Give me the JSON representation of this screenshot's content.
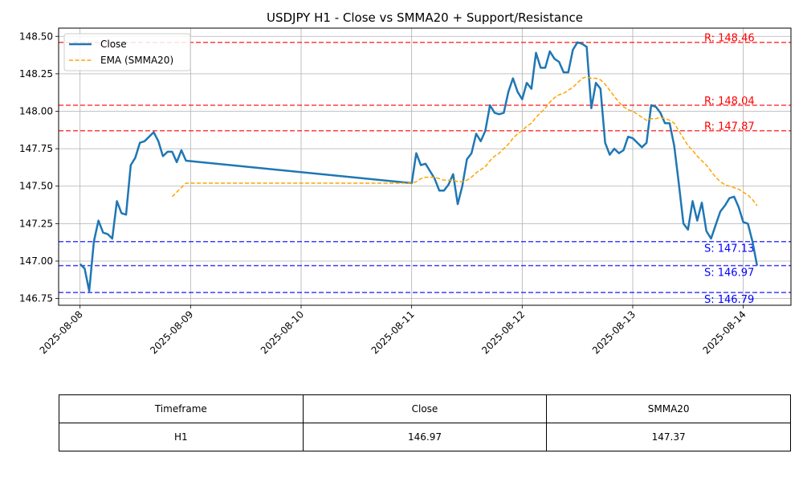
{
  "chart_data": {
    "type": "line",
    "title": "USDJPY H1 - Close vs SMMA20 + Support/Resistance",
    "xlabel": "",
    "ylabel": "",
    "xlim": [
      "2025-08-07T19:21",
      "2025-08-14T10:21"
    ],
    "ylim": [
      146.705,
      148.555
    ],
    "yticks": [
      146.75,
      147.0,
      147.25,
      147.5,
      147.75,
      148.0,
      148.25,
      148.5
    ],
    "ytick_labels": [
      "146.75",
      "147.00",
      "147.25",
      "147.50",
      "147.75",
      "148.00",
      "148.25",
      "148.50"
    ],
    "xticks": [
      "2025-08-08",
      "2025-08-09",
      "2025-08-10",
      "2025-08-11",
      "2025-08-12",
      "2025-08-13",
      "2025-08-14"
    ],
    "grid": true,
    "legend_position": "top-left",
    "series": [
      {
        "name": "Close",
        "color": "#1f77b4",
        "style": "solid",
        "points": [
          [
            "2025-08-08T00:00",
            146.98
          ],
          [
            "2025-08-08T01:00",
            146.95
          ],
          [
            "2025-08-08T02:00",
            146.8
          ],
          [
            "2025-08-08T03:00",
            147.13
          ],
          [
            "2025-08-08T04:00",
            147.27
          ],
          [
            "2025-08-08T05:00",
            147.19
          ],
          [
            "2025-08-08T06:00",
            147.18
          ],
          [
            "2025-08-08T07:00",
            147.15
          ],
          [
            "2025-08-08T08:00",
            147.4
          ],
          [
            "2025-08-08T09:00",
            147.32
          ],
          [
            "2025-08-08T10:00",
            147.31
          ],
          [
            "2025-08-08T11:00",
            147.64
          ],
          [
            "2025-08-08T12:00",
            147.69
          ],
          [
            "2025-08-08T13:00",
            147.79
          ],
          [
            "2025-08-08T14:00",
            147.8
          ],
          [
            "2025-08-08T15:00",
            147.83
          ],
          [
            "2025-08-08T16:00",
            147.86
          ],
          [
            "2025-08-08T17:00",
            147.8
          ],
          [
            "2025-08-08T18:00",
            147.7
          ],
          [
            "2025-08-08T19:00",
            147.73
          ],
          [
            "2025-08-08T20:00",
            147.73
          ],
          [
            "2025-08-08T21:00",
            147.66
          ],
          [
            "2025-08-08T22:00",
            147.74
          ],
          [
            "2025-08-08T23:00",
            147.67
          ],
          [
            "2025-08-11T00:00",
            147.52
          ],
          [
            "2025-08-11T01:00",
            147.72
          ],
          [
            "2025-08-11T02:00",
            147.64
          ],
          [
            "2025-08-11T03:00",
            147.65
          ],
          [
            "2025-08-11T04:00",
            147.6
          ],
          [
            "2025-08-11T05:00",
            147.55
          ],
          [
            "2025-08-11T06:00",
            147.47
          ],
          [
            "2025-08-11T07:00",
            147.47
          ],
          [
            "2025-08-11T08:00",
            147.51
          ],
          [
            "2025-08-11T09:00",
            147.58
          ],
          [
            "2025-08-11T10:00",
            147.38
          ],
          [
            "2025-08-11T11:00",
            147.5
          ],
          [
            "2025-08-11T12:00",
            147.68
          ],
          [
            "2025-08-11T13:00",
            147.72
          ],
          [
            "2025-08-11T14:00",
            147.85
          ],
          [
            "2025-08-11T15:00",
            147.8
          ],
          [
            "2025-08-11T16:00",
            147.87
          ],
          [
            "2025-08-11T17:00",
            148.04
          ],
          [
            "2025-08-11T18:00",
            147.99
          ],
          [
            "2025-08-11T19:00",
            147.98
          ],
          [
            "2025-08-11T20:00",
            147.99
          ],
          [
            "2025-08-11T21:00",
            148.13
          ],
          [
            "2025-08-11T22:00",
            148.22
          ],
          [
            "2025-08-11T23:00",
            148.13
          ],
          [
            "2025-08-12T00:00",
            148.08
          ],
          [
            "2025-08-12T01:00",
            148.19
          ],
          [
            "2025-08-12T02:00",
            148.15
          ],
          [
            "2025-08-12T03:00",
            148.39
          ],
          [
            "2025-08-12T04:00",
            148.29
          ],
          [
            "2025-08-12T05:00",
            148.29
          ],
          [
            "2025-08-12T06:00",
            148.4
          ],
          [
            "2025-08-12T07:00",
            148.35
          ],
          [
            "2025-08-12T08:00",
            148.33
          ],
          [
            "2025-08-12T09:00",
            148.26
          ],
          [
            "2025-08-12T10:00",
            148.26
          ],
          [
            "2025-08-12T11:00",
            148.41
          ],
          [
            "2025-08-12T12:00",
            148.46
          ],
          [
            "2025-08-12T13:00",
            148.45
          ],
          [
            "2025-08-12T14:00",
            148.43
          ],
          [
            "2025-08-12T15:00",
            148.02
          ],
          [
            "2025-08-12T16:00",
            148.19
          ],
          [
            "2025-08-12T17:00",
            148.15
          ],
          [
            "2025-08-12T18:00",
            147.79
          ],
          [
            "2025-08-12T19:00",
            147.71
          ],
          [
            "2025-08-12T20:00",
            147.75
          ],
          [
            "2025-08-12T21:00",
            147.72
          ],
          [
            "2025-08-12T22:00",
            147.74
          ],
          [
            "2025-08-12T23:00",
            147.83
          ],
          [
            "2025-08-13T00:00",
            147.82
          ],
          [
            "2025-08-13T01:00",
            147.79
          ],
          [
            "2025-08-13T02:00",
            147.76
          ],
          [
            "2025-08-13T03:00",
            147.79
          ],
          [
            "2025-08-13T04:00",
            148.04
          ],
          [
            "2025-08-13T05:00",
            148.03
          ],
          [
            "2025-08-13T06:00",
            147.99
          ],
          [
            "2025-08-13T07:00",
            147.92
          ],
          [
            "2025-08-13T08:00",
            147.92
          ],
          [
            "2025-08-13T09:00",
            147.77
          ],
          [
            "2025-08-13T10:00",
            147.52
          ],
          [
            "2025-08-13T11:00",
            147.25
          ],
          [
            "2025-08-13T12:00",
            147.21
          ],
          [
            "2025-08-13T13:00",
            147.4
          ],
          [
            "2025-08-13T14:00",
            147.27
          ],
          [
            "2025-08-13T15:00",
            147.39
          ],
          [
            "2025-08-13T16:00",
            147.2
          ],
          [
            "2025-08-13T17:00",
            147.15
          ],
          [
            "2025-08-13T18:00",
            147.24
          ],
          [
            "2025-08-13T19:00",
            147.33
          ],
          [
            "2025-08-13T20:00",
            147.37
          ],
          [
            "2025-08-13T21:00",
            147.42
          ],
          [
            "2025-08-13T22:00",
            147.43
          ],
          [
            "2025-08-13T23:00",
            147.36
          ],
          [
            "2025-08-14T00:00",
            147.26
          ],
          [
            "2025-08-14T01:00",
            147.25
          ],
          [
            "2025-08-14T02:00",
            147.13
          ],
          [
            "2025-08-14T03:00",
            146.97
          ]
        ]
      },
      {
        "name": "EMA (SMMA20)",
        "color": "#ffa500",
        "style": "dashed",
        "points": [
          [
            "2025-08-08T20:00",
            147.43
          ],
          [
            "2025-08-08T21:00",
            147.46
          ],
          [
            "2025-08-08T22:00",
            147.49
          ],
          [
            "2025-08-08T23:00",
            147.52
          ],
          [
            "2025-08-11T00:00",
            147.52
          ],
          [
            "2025-08-11T01:00",
            147.53
          ],
          [
            "2025-08-11T02:00",
            147.55
          ],
          [
            "2025-08-11T03:00",
            147.56
          ],
          [
            "2025-08-11T04:00",
            147.56
          ],
          [
            "2025-08-11T05:00",
            147.56
          ],
          [
            "2025-08-11T06:00",
            147.55
          ],
          [
            "2025-08-11T07:00",
            147.54
          ],
          [
            "2025-08-11T08:00",
            147.54
          ],
          [
            "2025-08-11T09:00",
            147.54
          ],
          [
            "2025-08-11T10:00",
            147.53
          ],
          [
            "2025-08-11T11:00",
            147.53
          ],
          [
            "2025-08-11T12:00",
            147.54
          ],
          [
            "2025-08-11T13:00",
            147.56
          ],
          [
            "2025-08-11T14:00",
            147.59
          ],
          [
            "2025-08-11T15:00",
            147.61
          ],
          [
            "2025-08-11T16:00",
            147.63
          ],
          [
            "2025-08-11T17:00",
            147.67
          ],
          [
            "2025-08-11T18:00",
            147.7
          ],
          [
            "2025-08-11T19:00",
            147.72
          ],
          [
            "2025-08-11T20:00",
            147.75
          ],
          [
            "2025-08-11T21:00",
            147.78
          ],
          [
            "2025-08-11T22:00",
            147.82
          ],
          [
            "2025-08-11T23:00",
            147.85
          ],
          [
            "2025-08-12T00:00",
            147.87
          ],
          [
            "2025-08-12T01:00",
            147.9
          ],
          [
            "2025-08-12T02:00",
            147.92
          ],
          [
            "2025-08-12T03:00",
            147.96
          ],
          [
            "2025-08-12T04:00",
            147.99
          ],
          [
            "2025-08-12T05:00",
            148.02
          ],
          [
            "2025-08-12T06:00",
            148.06
          ],
          [
            "2025-08-12T07:00",
            148.09
          ],
          [
            "2025-08-12T08:00",
            148.11
          ],
          [
            "2025-08-12T09:00",
            148.12
          ],
          [
            "2025-08-12T10:00",
            148.14
          ],
          [
            "2025-08-12T11:00",
            148.16
          ],
          [
            "2025-08-12T12:00",
            148.19
          ],
          [
            "2025-08-12T13:00",
            148.22
          ],
          [
            "2025-08-12T14:00",
            148.23
          ],
          [
            "2025-08-12T15:00",
            148.22
          ],
          [
            "2025-08-12T16:00",
            148.22
          ],
          [
            "2025-08-12T17:00",
            148.21
          ],
          [
            "2025-08-12T18:00",
            148.18
          ],
          [
            "2025-08-12T19:00",
            148.14
          ],
          [
            "2025-08-12T20:00",
            148.1
          ],
          [
            "2025-08-12T21:00",
            148.06
          ],
          [
            "2025-08-12T22:00",
            148.03
          ],
          [
            "2025-08-12T23:00",
            148.01
          ],
          [
            "2025-08-13T00:00",
            148.0
          ],
          [
            "2025-08-13T01:00",
            147.98
          ],
          [
            "2025-08-13T02:00",
            147.96
          ],
          [
            "2025-08-13T03:00",
            147.94
          ],
          [
            "2025-08-13T04:00",
            147.95
          ],
          [
            "2025-08-13T05:00",
            147.95
          ],
          [
            "2025-08-13T06:00",
            147.96
          ],
          [
            "2025-08-13T07:00",
            147.95
          ],
          [
            "2025-08-13T08:00",
            147.94
          ],
          [
            "2025-08-13T09:00",
            147.92
          ],
          [
            "2025-08-13T10:00",
            147.87
          ],
          [
            "2025-08-13T11:00",
            147.82
          ],
          [
            "2025-08-13T12:00",
            147.77
          ],
          [
            "2025-08-13T13:00",
            147.74
          ],
          [
            "2025-08-13T14:00",
            147.7
          ],
          [
            "2025-08-13T15:00",
            147.67
          ],
          [
            "2025-08-13T16:00",
            147.64
          ],
          [
            "2025-08-13T17:00",
            147.6
          ],
          [
            "2025-08-13T18:00",
            147.56
          ],
          [
            "2025-08-13T19:00",
            147.53
          ],
          [
            "2025-08-13T20:00",
            147.51
          ],
          [
            "2025-08-13T21:00",
            147.5
          ],
          [
            "2025-08-13T22:00",
            147.49
          ],
          [
            "2025-08-13T23:00",
            147.48
          ],
          [
            "2025-08-14T00:00",
            147.46
          ],
          [
            "2025-08-14T01:00",
            147.44
          ],
          [
            "2025-08-14T02:00",
            147.41
          ],
          [
            "2025-08-14T03:00",
            147.37
          ]
        ]
      }
    ],
    "hlines": [
      {
        "kind": "resistance",
        "value": 148.46,
        "label": "R: 148.46",
        "color": "#ff0000"
      },
      {
        "kind": "resistance",
        "value": 148.04,
        "label": "R: 148.04",
        "color": "#ff0000"
      },
      {
        "kind": "resistance",
        "value": 147.87,
        "label": "R: 147.87",
        "color": "#ff0000"
      },
      {
        "kind": "support",
        "value": 147.13,
        "label": "S: 147.13",
        "color": "#0000ff"
      },
      {
        "kind": "support",
        "value": 146.97,
        "label": "S: 146.97",
        "color": "#0000ff"
      },
      {
        "kind": "support",
        "value": 146.79,
        "label": "S: 146.79",
        "color": "#0000ff"
      }
    ]
  },
  "table": {
    "headers": [
      "Timeframe",
      "Close",
      "SMMA20"
    ],
    "rows": [
      [
        "H1",
        "146.97",
        "147.37"
      ]
    ]
  }
}
